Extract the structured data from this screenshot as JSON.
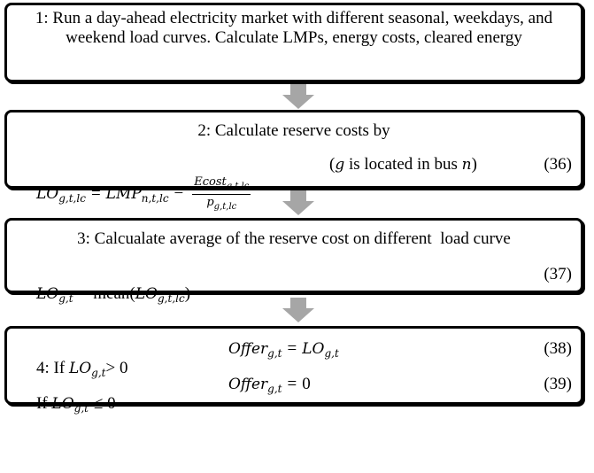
{
  "steps": [
    {
      "text": "1: Run a day-ahead electricity market with different seasonal, weekdays, and weekend load curves. Calculate LMPs, energy costs, cleared energy"
    },
    {
      "title": "2: Calculate reserve costs by",
      "equation": [
        "LO",
        "g,t,lc",
        "=",
        "LMP",
        "n,t,lc",
        "−",
        "Ecost",
        "g,t,lc",
        "p",
        "g,t,lc"
      ],
      "note": [
        "(",
        "g",
        " is located in bus ",
        "n",
        ")"
      ],
      "number": "(36)"
    },
    {
      "title": "3: Calcualate average of the reserve cost on different  load curve",
      "equation": [
        "LO",
        "g,t",
        "=",
        "mean(",
        "LO",
        "g,t,lc",
        ")"
      ],
      "number": "(37)"
    },
    {
      "rows": [
        {
          "condition": [
            "4: If ",
            "LO",
            "g,t",
            "> 0"
          ],
          "equation": [
            "Offer",
            "g,t",
            "=",
            "LO",
            "g,t"
          ],
          "number": "(38)"
        },
        {
          "condition": [
            "If ",
            "LO",
            "g,t",
            "≤ 0"
          ],
          "equation": [
            "Offer",
            "g,t",
            "=",
            "0"
          ],
          "number": "(39)"
        }
      ]
    }
  ]
}
